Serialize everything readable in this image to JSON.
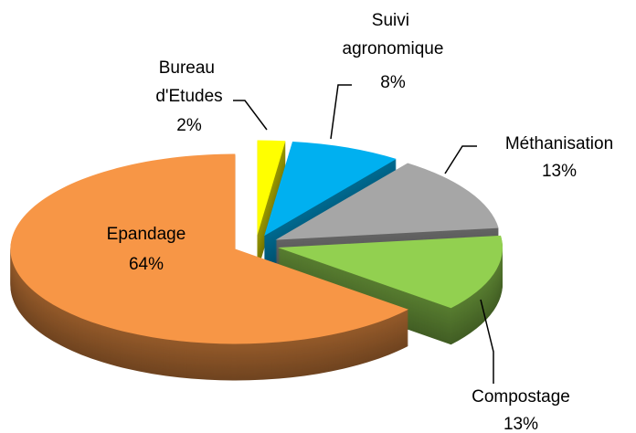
{
  "chart_data": {
    "type": "pie",
    "categories": [
      "Bureau d'Etudes",
      "Suivi agronomique",
      "Méthanisation",
      "Compostage",
      "Epandage"
    ],
    "values": [
      2,
      8,
      13,
      13,
      64
    ],
    "value_labels": [
      "2%",
      "8%",
      "13%",
      "13%",
      "64%"
    ],
    "colors": [
      "#ffff00",
      "#00b0f0",
      "#a6a6a6",
      "#92d050",
      "#f79646"
    ]
  }
}
